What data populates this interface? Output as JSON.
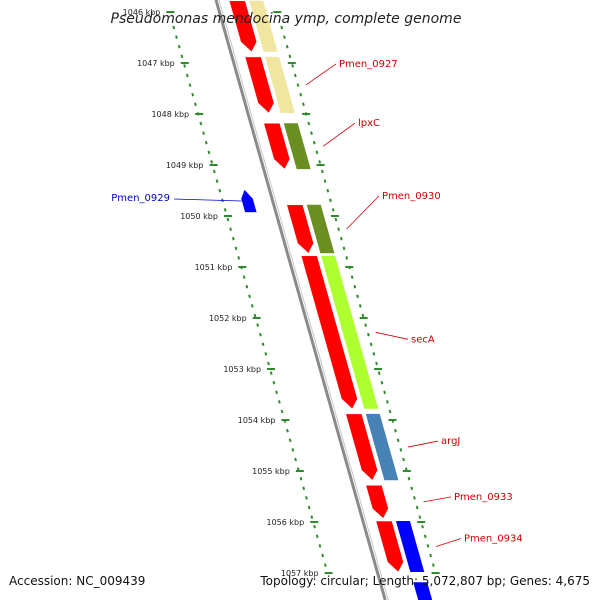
{
  "title": "Pseudomonas mendocina ymp, complete genome",
  "footer": {
    "accession": "Accession: NC_009439",
    "summary": "Topology: circular; Length: 5,072,807 bp; Genes: 4,675"
  },
  "colors": {
    "backbone": "#8a8a8a",
    "forward_track": "#ff0000",
    "minus_track": "#0000ff",
    "tick": "#2e8b2e",
    "label_forward": "#cc0000",
    "label_reverse": "#0000cc"
  },
  "kbp_ticks": [
    {
      "label": "1046 kbp",
      "kbp": 1046
    },
    {
      "label": "1047 kbp",
      "kbp": 1047
    },
    {
      "label": "1048 kbp",
      "kbp": 1048
    },
    {
      "label": "1049 kbp",
      "kbp": 1049
    },
    {
      "label": "1050 kbp",
      "kbp": 1050
    },
    {
      "label": "1051 kbp",
      "kbp": 1051
    },
    {
      "label": "1052 kbp",
      "kbp": 1052
    },
    {
      "label": "1053 kbp",
      "kbp": 1053
    },
    {
      "label": "1054 kbp",
      "kbp": 1054
    },
    {
      "label": "1055 kbp",
      "kbp": 1055
    },
    {
      "label": "1056 kbp",
      "kbp": 1056
    },
    {
      "label": "1057 kbp",
      "kbp": 1057
    }
  ],
  "genes": [
    {
      "name": "",
      "strand": "+",
      "start_kbp": 1045.8,
      "end_kbp": 1046.8,
      "color": "#ff0000"
    },
    {
      "name": "",
      "strand": "+",
      "start_kbp": 1045.8,
      "end_kbp": 1046.8,
      "cog_color": "#f0e6a0"
    },
    {
      "name": "Pmen_0927",
      "strand": "+",
      "start_kbp": 1046.9,
      "end_kbp": 1048.0,
      "color": "#ff0000",
      "cog_color": "#f0e6a0"
    },
    {
      "name": "lpxC",
      "strand": "+",
      "start_kbp": 1048.2,
      "end_kbp": 1049.1,
      "color": "#ff0000",
      "cog_color": "#6b8e23"
    },
    {
      "name": "Pmen_0929",
      "strand": "-",
      "start_kbp": 1049.5,
      "end_kbp": 1049.95,
      "color": "#0000ff"
    },
    {
      "name": "Pmen_0930",
      "strand": "+",
      "start_kbp": 1049.8,
      "end_kbp": 1050.75,
      "color": "#ff0000",
      "cog_color": "#6b8e23"
    },
    {
      "name": "secA",
      "strand": "+",
      "start_kbp": 1050.8,
      "end_kbp": 1053.8,
      "color": "#ff0000",
      "cog_color": "#adff2f"
    },
    {
      "name": "argJ",
      "strand": "+",
      "start_kbp": 1053.9,
      "end_kbp": 1055.2,
      "color": "#ff0000",
      "cog_color": "#4682b4"
    },
    {
      "name": "Pmen_0933",
      "strand": "+",
      "start_kbp": 1055.3,
      "end_kbp": 1055.95,
      "color": "#ff0000"
    },
    {
      "name": "Pmen_0934",
      "strand": "+",
      "start_kbp": 1056.0,
      "end_kbp": 1057.0,
      "color": "#ff0000",
      "cog_color": "#0000ff"
    },
    {
      "name": "",
      "strand": "+",
      "start_kbp": 1057.2,
      "end_kbp": 1057.6,
      "cog_color": "#0000ff"
    }
  ]
}
